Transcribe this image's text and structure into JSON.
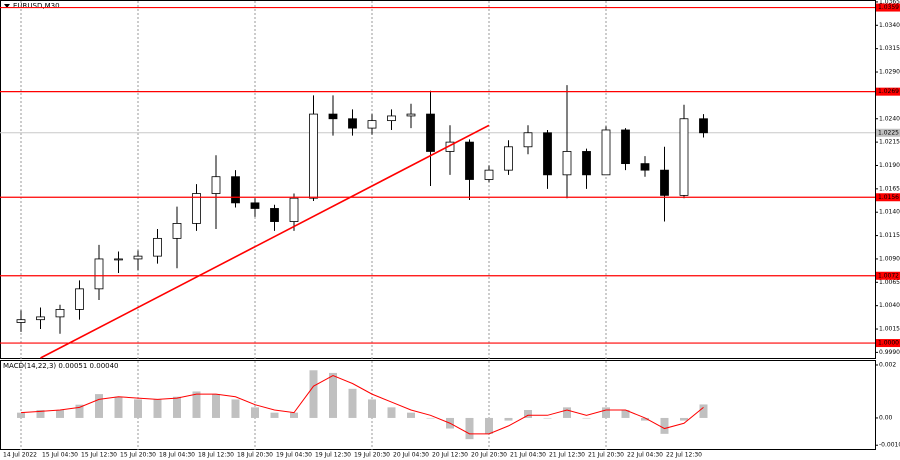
{
  "chart_data": [
    {
      "type": "candlestick",
      "title": "EURUSD,M30",
      "categories": [
        "14 Jul 2022",
        null,
        "15 Jul 04:30",
        null,
        "15 Jul 12:30",
        null,
        "15 Jul 20:30",
        null,
        "18 Jul 04:30",
        null,
        "18 Jul 12:30",
        null,
        "18 Jul 20:30",
        null,
        "19 Jul 04:30",
        null,
        "19 Jul 12:30",
        null,
        "19 Jul 20:30",
        null,
        "20 Jul 04:30",
        null,
        "20 Jul 12:30",
        null,
        "20 Jul 20:30",
        null,
        "21 Jul 04:30",
        null,
        "21 Jul 12:30",
        null,
        "21 Jul 20:30",
        null,
        "22 Jul 04:30",
        null,
        "22 Jul 12:30",
        null
      ],
      "open": [
        1.0022,
        1.0025,
        1.0028,
        1.0036,
        1.0058,
        1.009,
        1.009,
        1.0093,
        1.0112,
        1.0128,
        1.016,
        1.0178,
        1.015,
        1.0144,
        1.013,
        1.0155,
        1.0245,
        1.024,
        1.023,
        1.0238,
        1.0243,
        1.0245,
        1.0205,
        1.0215,
        1.0175,
        1.0185,
        1.021,
        1.0225,
        1.018,
        1.0205,
        1.018,
        1.0228,
        1.0192,
        1.0185,
        1.0158,
        1.024
      ],
      "high": [
        1.0035,
        1.0038,
        1.0041,
        1.0067,
        1.0105,
        1.0098,
        1.0099,
        1.0122,
        1.0146,
        1.017,
        1.0201,
        1.0185,
        1.0155,
        1.0148,
        1.016,
        1.0265,
        1.0265,
        1.025,
        1.0245,
        1.025,
        1.0256,
        1.027,
        1.0233,
        1.0218,
        1.019,
        1.0217,
        1.0233,
        1.0228,
        1.0276,
        1.0208,
        1.0232,
        1.023,
        1.02,
        1.021,
        1.0255,
        1.0245
      ],
      "low": [
        1.0012,
        1.0015,
        1.001,
        1.0025,
        1.0046,
        1.0075,
        1.0078,
        1.0085,
        1.008,
        1.012,
        1.0122,
        1.0145,
        1.0135,
        1.012,
        1.012,
        1.0152,
        1.0222,
        1.0222,
        1.0223,
        1.0228,
        1.023,
        1.0168,
        1.018,
        1.0153,
        1.0172,
        1.018,
        1.0202,
        1.0165,
        1.0155,
        1.0165,
        1.018,
        1.0185,
        1.0178,
        1.013,
        1.0155,
        1.022
      ],
      "close": [
        1.0025,
        1.0028,
        1.0036,
        1.0058,
        1.009,
        1.009,
        1.0093,
        1.0112,
        1.0128,
        1.016,
        1.0178,
        1.015,
        1.0144,
        1.013,
        1.0155,
        1.0245,
        1.024,
        1.023,
        1.0238,
        1.0243,
        1.0245,
        1.0205,
        1.0215,
        1.0175,
        1.0185,
        1.021,
        1.0225,
        1.018,
        1.0205,
        1.018,
        1.0228,
        1.0192,
        1.0185,
        1.0158,
        1.024,
        1.0225
      ],
      "up_color": "#ffffff",
      "down_color": "#000000",
      "wick_color": "#000000",
      "ylim": [
        0.9984,
        1.0366
      ],
      "yticks": [
        1.0365,
        {
          "value": 1.034,
          "label": "1.0340"
        },
        1.0315,
        {
          "value": 1.029,
          "label": "1.0290"
        },
        {
          "value": 1.024,
          "label": "1.0240"
        },
        1.0215,
        {
          "value": 1.019,
          "label": "1.0190"
        },
        1.0165,
        {
          "value": 1.014,
          "label": "1.0140"
        },
        1.0115,
        {
          "value": 1.009,
          "label": "1.0090"
        },
        1.0065,
        {
          "value": 1.004,
          "label": "1.0040"
        },
        1.0015,
        {
          "value": 0.999,
          "label": "0.9990"
        }
      ],
      "levels": [
        1.0359,
        1.0269,
        1.0156,
        1.0072,
        {
          "value": 1,
          "label": "1.0000"
        }
      ],
      "level_color": "#ff0000",
      "current_price": 1.0225,
      "trend_line": {
        "x": [
          1,
          24
        ],
        "y": [
          0.9984,
          1.0233
        ]
      },
      "grid": true
    },
    {
      "type": "macd",
      "title": "MACD(14,22,3) 0.00051 0.00040",
      "values": [
        0.0002,
        0.0003,
        0.0003,
        0.0005,
        0.0009,
        0.0008,
        0.0007,
        0.0007,
        0.0008,
        0.001,
        0.0009,
        0.0007,
        0.0004,
        0.0002,
        0.0002,
        0.0018,
        0.0017,
        0.0011,
        0.0007,
        0.0004,
        0.0002,
        0.0,
        -0.0004,
        -0.0008,
        -0.0006,
        -0.0001,
        0.0003,
        0.0,
        0.0004,
        0.0,
        0.0004,
        0.0003,
        -0.0001,
        -0.0006,
        -0.0001,
        0.00051
      ],
      "signal": [
        0.0002,
        0.00025,
        0.0003,
        0.0004,
        0.0007,
        0.0008,
        0.00075,
        0.0007,
        0.00075,
        0.0009,
        0.0009,
        0.0008,
        0.0005,
        0.0003,
        0.0002,
        0.0012,
        0.0016,
        0.0013,
        0.0009,
        0.0006,
        0.0003,
        0.0001,
        -0.0002,
        -0.0006,
        -0.0006,
        -0.0003,
        0.0001,
        0.0001,
        0.0003,
        0.0001,
        0.0003,
        0.0003,
        0.0,
        -0.0004,
        -0.0002,
        0.0004
      ],
      "color": "#c0c0c0",
      "signal_color": "#ff0000",
      "ylim": [
        -0.00121,
        0.00215
      ],
      "yticks": [
        0.002,
        {
          "value": 0,
          "label": "0.00"
        },
        {
          "value": -0.00103,
          "label": "-0.00103"
        }
      ]
    }
  ]
}
